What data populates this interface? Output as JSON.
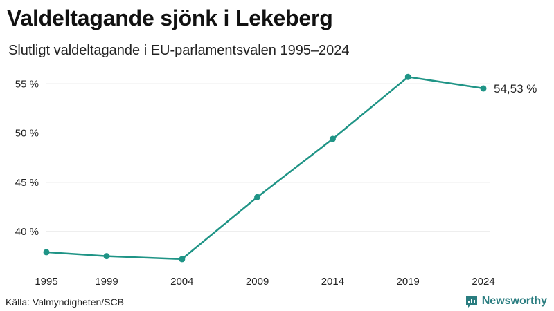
{
  "header": {
    "title": "Valdeltagande sjönk i Lekeberg",
    "subtitle": "Slutligt valdeltagande i EU-parlamentsvalen 1995–2024"
  },
  "footer": {
    "source": "Källa: Valmyndigheten/SCB",
    "brand": "Newsworthy",
    "brand_icon": "chart-bubble-icon"
  },
  "colors": {
    "line": "#1f9486",
    "grid": "#dddddd",
    "brand": "#2a7d80",
    "text": "#222222"
  },
  "chart_data": {
    "type": "line",
    "title": "Valdeltagande sjönk i Lekeberg",
    "subtitle": "Slutligt valdeltagande i EU-parlamentsvalen 1995–2024",
    "xlabel": "",
    "ylabel": "",
    "categories": [
      "1995",
      "1999",
      "2004",
      "2009",
      "2014",
      "2019",
      "2024"
    ],
    "x": [
      1995,
      1999,
      2004,
      2009,
      2014,
      2019,
      2024
    ],
    "series": [
      {
        "name": "Valdeltagande",
        "values": [
          37.9,
          37.5,
          37.2,
          43.5,
          49.4,
          55.7,
          54.53
        ]
      }
    ],
    "yticks": [
      40,
      45,
      50,
      55
    ],
    "ytick_labels": [
      "40 %",
      "45 %",
      "50 %",
      "55 %"
    ],
    "ylim": [
      36.5,
      57.5
    ],
    "xlim": [
      1995,
      2024
    ],
    "grid": true,
    "last_value_label": "54,53 %"
  }
}
